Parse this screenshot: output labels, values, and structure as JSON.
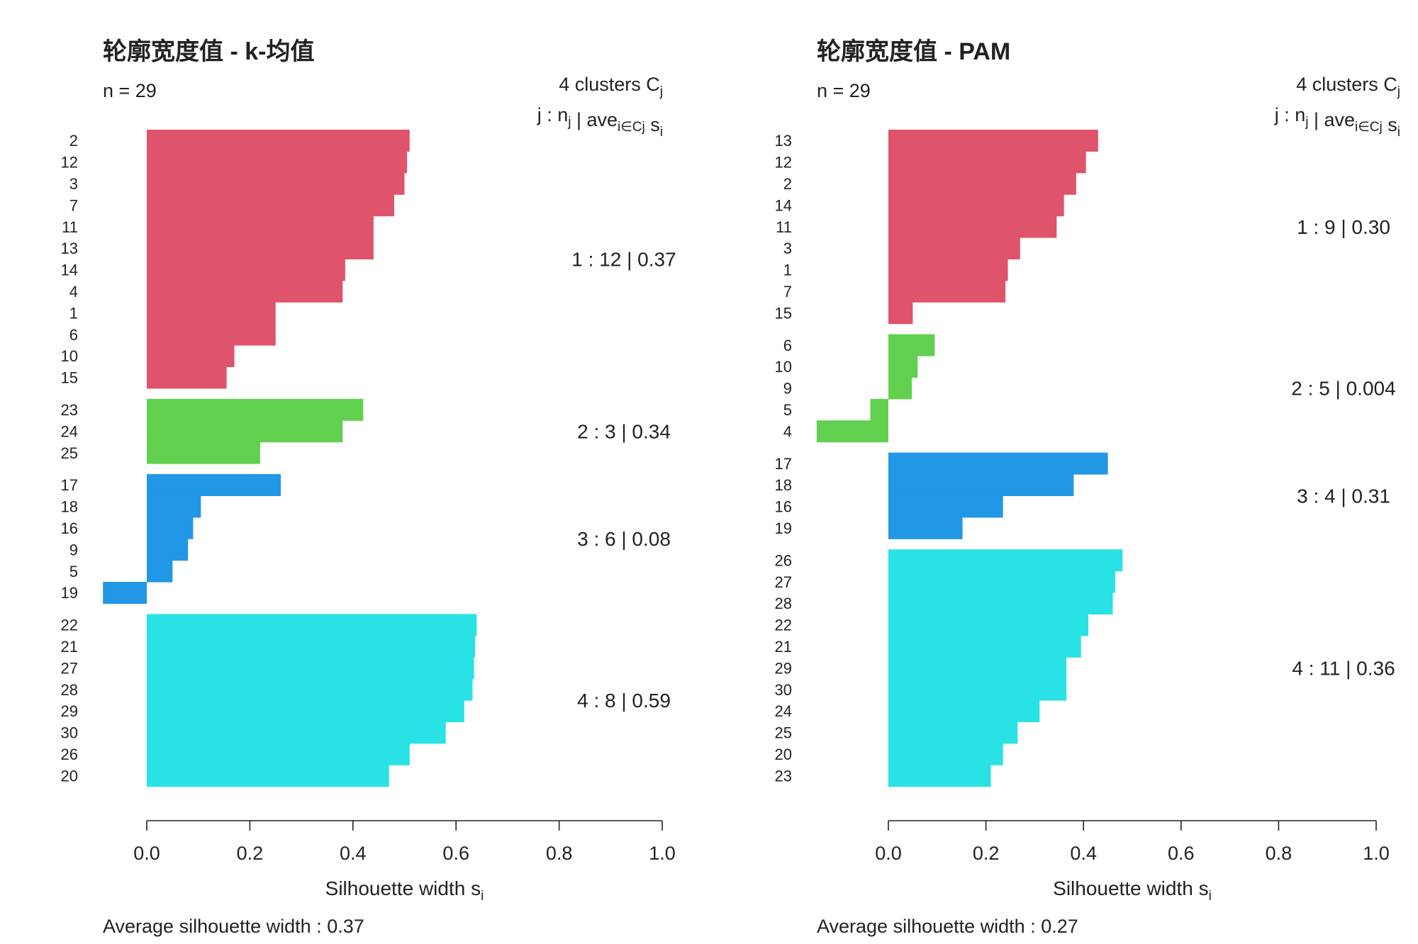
{
  "chart_data": [
    {
      "type": "bar",
      "orientation": "horizontal",
      "title": "轮廓宽度值 - k-均值",
      "n_label": "n = 29",
      "clusters_header": "4  clusters  C",
      "clusters_header_sub": "j",
      "stats_header": [
        "j :  n",
        "j",
        " | ave",
        "i∈Cj",
        "  s",
        "i"
      ],
      "xlabel": "Silhouette width s",
      "xlabel_sub": "i",
      "xlim": [
        0.0,
        1.0
      ],
      "x_ticks": [
        "0.0",
        "0.2",
        "0.4",
        "0.6",
        "0.8",
        "1.0"
      ],
      "footer": "Average silhouette width :  0.37",
      "clusters": [
        {
          "label": "1 :   12  |  0.37",
          "color": "#DF536B",
          "observations": [
            "2",
            "12",
            "3",
            "7",
            "11",
            "13",
            "14",
            "4",
            "1",
            "6",
            "10",
            "15"
          ],
          "values": [
            0.51,
            0.505,
            0.5,
            0.48,
            0.44,
            0.44,
            0.385,
            0.38,
            0.25,
            0.25,
            0.17,
            0.155
          ]
        },
        {
          "label": "2 :   3  |  0.34",
          "color": "#61D04F",
          "observations": [
            "23",
            "24",
            "25"
          ],
          "values": [
            0.42,
            0.38,
            0.22
          ]
        },
        {
          "label": "3 :   6  |  0.08",
          "color": "#2297E6",
          "observations": [
            "17",
            "18",
            "16",
            "9",
            "5",
            "19"
          ],
          "values": [
            0.26,
            0.105,
            0.09,
            0.08,
            0.05,
            -0.085
          ]
        },
        {
          "label": "4 :   8  |  0.59",
          "color": "#28E2E5",
          "observations": [
            "22",
            "21",
            "27",
            "28",
            "29",
            "30",
            "26",
            "20"
          ],
          "values": [
            0.64,
            0.637,
            0.635,
            0.632,
            0.616,
            0.58,
            0.51,
            0.47
          ]
        }
      ]
    },
    {
      "type": "bar",
      "orientation": "horizontal",
      "title": "轮廓宽度值 - PAM",
      "n_label": "n = 29",
      "clusters_header": "4  clusters  C",
      "clusters_header_sub": "j",
      "stats_header": [
        "j :  n",
        "j",
        " | ave",
        "i∈Cj",
        "  s",
        "i"
      ],
      "xlabel": "Silhouette width s",
      "xlabel_sub": "i",
      "xlim": [
        0.0,
        1.0
      ],
      "x_ticks": [
        "0.0",
        "0.2",
        "0.4",
        "0.6",
        "0.8",
        "1.0"
      ],
      "footer": "Average silhouette width :  0.27",
      "clusters": [
        {
          "label": "1 :   9  |  0.30",
          "color": "#DF536B",
          "observations": [
            "13",
            "12",
            "2",
            "14",
            "11",
            "3",
            "1",
            "7",
            "15"
          ],
          "values": [
            0.43,
            0.405,
            0.385,
            0.36,
            0.345,
            0.27,
            0.245,
            0.24,
            0.05
          ]
        },
        {
          "label": "2 :   5  |  0.004",
          "color": "#61D04F",
          "observations": [
            "6",
            "10",
            "9",
            "5",
            "4"
          ],
          "values": [
            0.095,
            0.06,
            0.048,
            -0.037,
            -0.147
          ]
        },
        {
          "label": "3 :   4  |  0.31",
          "color": "#2297E6",
          "observations": [
            "17",
            "18",
            "16",
            "19"
          ],
          "values": [
            0.45,
            0.38,
            0.235,
            0.152
          ]
        },
        {
          "label": "4 :   11  |  0.36",
          "color": "#28E2E5",
          "observations": [
            "26",
            "27",
            "28",
            "22",
            "21",
            "29",
            "30",
            "24",
            "25",
            "20",
            "23"
          ],
          "values": [
            0.48,
            0.465,
            0.46,
            0.41,
            0.395,
            0.365,
            0.365,
            0.31,
            0.265,
            0.235,
            0.21
          ]
        }
      ]
    }
  ]
}
